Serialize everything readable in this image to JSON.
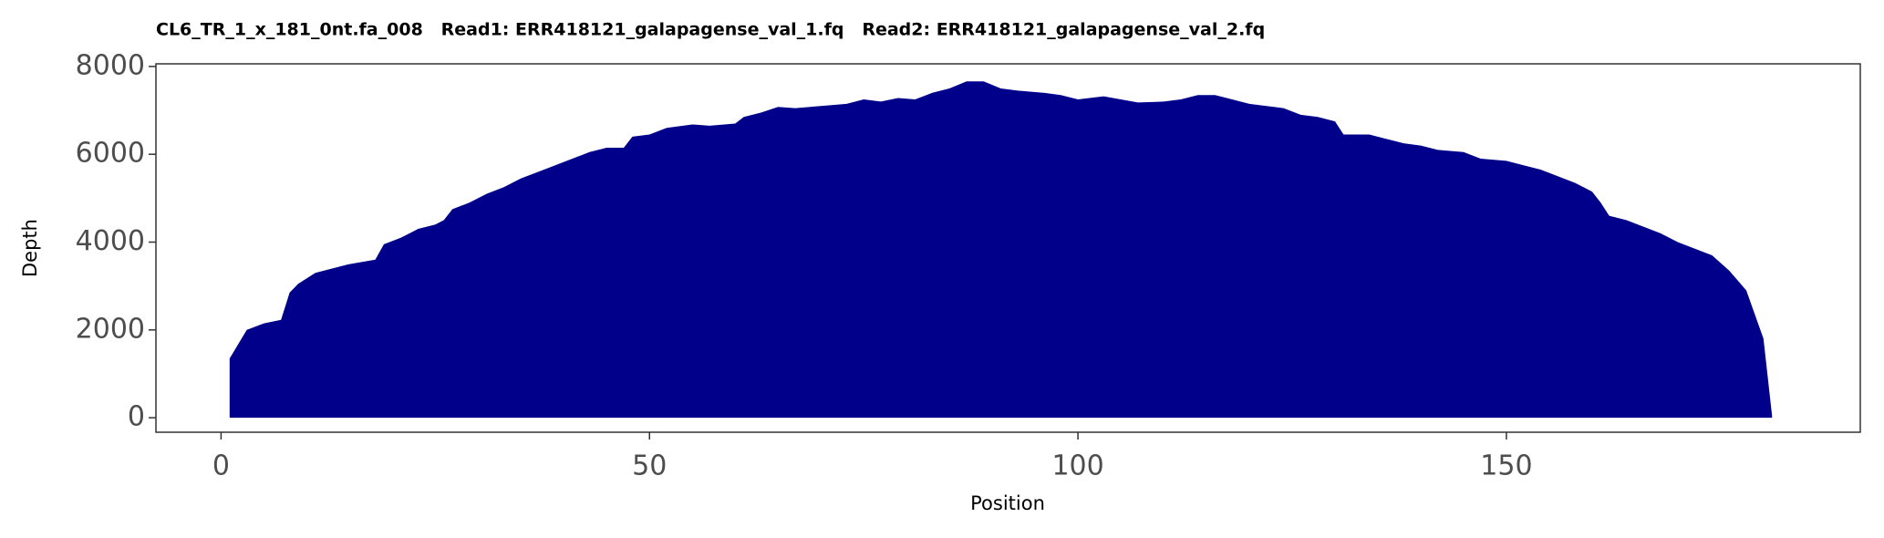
{
  "chart_data": {
    "type": "area",
    "title": "CL6_TR_1_x_181_0nt.fa_008   Read1: ERR418121_galapagense_val_1.fq   Read2: ERR418121_galapagense_val_2.fq",
    "xlabel": "Position",
    "ylabel": "Depth",
    "color": "#00008b",
    "x": [
      1,
      3,
      5,
      7,
      8,
      9,
      11,
      13,
      15,
      18,
      19,
      21,
      23,
      25,
      26,
      27,
      29,
      31,
      33,
      35,
      37,
      39,
      41,
      43,
      45,
      47,
      48,
      50,
      52,
      55,
      57,
      60,
      61,
      63,
      65,
      67,
      70,
      73,
      75,
      77,
      79,
      81,
      83,
      85,
      87,
      89,
      91,
      93,
      96,
      98,
      100,
      103,
      105,
      107,
      110,
      112,
      114,
      116,
      118,
      120,
      122,
      124,
      126,
      128,
      130,
      131,
      134,
      136,
      138,
      140,
      142,
      145,
      147,
      150,
      152,
      154,
      156,
      158,
      160,
      161,
      162,
      164,
      166,
      168,
      170,
      172,
      174,
      176,
      178,
      180,
      181
    ],
    "values": [
      1350,
      2000,
      2150,
      2230,
      2850,
      3050,
      3300,
      3400,
      3500,
      3600,
      3950,
      4100,
      4300,
      4400,
      4500,
      4750,
      4900,
      5100,
      5250,
      5450,
      5600,
      5750,
      5900,
      6050,
      6150,
      6150,
      6400,
      6450,
      6600,
      6680,
      6650,
      6700,
      6850,
      6950,
      7080,
      7050,
      7100,
      7150,
      7250,
      7200,
      7280,
      7250,
      7400,
      7500,
      7660,
      7660,
      7500,
      7450,
      7400,
      7350,
      7250,
      7320,
      7250,
      7180,
      7200,
      7250,
      7350,
      7350,
      7250,
      7150,
      7100,
      7050,
      6900,
      6850,
      6750,
      6450,
      6450,
      6350,
      6250,
      6200,
      6100,
      6050,
      5900,
      5850,
      5750,
      5650,
      5500,
      5350,
      5150,
      4900,
      4600,
      4500,
      4350,
      4200,
      4000,
      3850,
      3700,
      3350,
      2900,
      1800,
      50
    ],
    "xlim": [
      -7.6,
      191.3
    ],
    "ylim": [
      -330,
      8060
    ],
    "xticks": [
      0,
      50,
      100,
      150
    ],
    "yticks": [
      0,
      2000,
      4000,
      6000,
      8000
    ],
    "grid": false
  }
}
